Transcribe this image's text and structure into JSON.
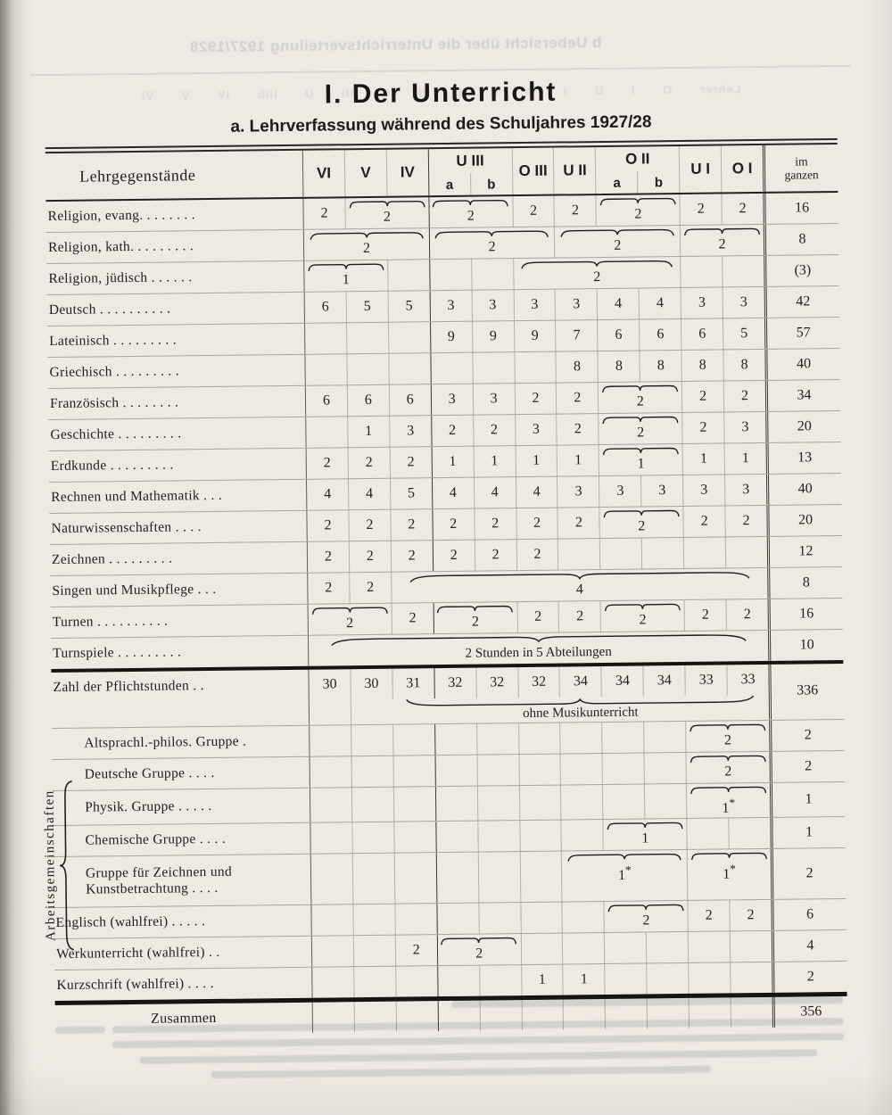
{
  "page": {
    "bleed_title": "b Uebersicht über die Unterrichtsverteilung 1927/1928",
    "bleed_columns": "Lehrer O I U I O II U II O III U IIIb IV V VI",
    "title": "I. Der Unterricht",
    "subtitle": "a. Lehrverfassung während des Schuljahres 1927/28"
  },
  "colors": {
    "paper": "#edeae4",
    "ink": "#211f1b",
    "rule_heavy": "#16150f"
  },
  "group": {
    "label": "Arbeitsgemeinschaften"
  },
  "table": {
    "corner_label": "Lehrgegenstände",
    "total_label_line1": "im",
    "total_label_line2": "ganzen",
    "class_columns": [
      {
        "label": "VI",
        "sub": false
      },
      {
        "label": "V",
        "sub": false
      },
      {
        "label": "IV",
        "sub": false
      },
      {
        "label": "U III",
        "sub": true,
        "sub_a": "a",
        "sub_b": "b"
      },
      {
        "label": "O III",
        "sub": false
      },
      {
        "label": "U II",
        "sub": false
      },
      {
        "label": "O II",
        "sub": true,
        "sub_a": "a",
        "sub_b": "b"
      },
      {
        "label": "U I",
        "sub": false
      },
      {
        "label": "O I",
        "sub": false
      }
    ],
    "rows": [
      {
        "label": "Religion, evang. . . . . . . .",
        "cells": [
          [
            1,
            1,
            "2",
            0
          ],
          [
            2,
            2,
            "2",
            1
          ],
          [
            4,
            2,
            "2",
            1
          ],
          [
            6,
            1,
            "2",
            0
          ],
          [
            7,
            1,
            "2",
            0
          ],
          [
            8,
            2,
            "2",
            1
          ],
          [
            10,
            1,
            "2",
            0
          ],
          [
            11,
            1,
            "2",
            0
          ]
        ],
        "total": "16"
      },
      {
        "label": "Religion, kath. . . . . . . . .",
        "cells": [
          [
            1,
            3,
            "2",
            1
          ],
          [
            4,
            3,
            "2",
            1
          ],
          [
            7,
            3,
            "2",
            1
          ],
          [
            10,
            2,
            "2",
            1
          ]
        ],
        "total": "8"
      },
      {
        "label": "Religion, jüdisch . . . . . .",
        "cells": [
          [
            1,
            2,
            "1",
            1
          ],
          [
            6,
            4,
            "2",
            1
          ]
        ],
        "total": "(3)"
      },
      {
        "label": "Deutsch . . . . . . . . . .",
        "cells": [
          [
            1,
            1,
            "6",
            0
          ],
          [
            2,
            1,
            "5",
            0
          ],
          [
            3,
            1,
            "5",
            0
          ],
          [
            4,
            1,
            "3",
            0
          ],
          [
            5,
            1,
            "3",
            0
          ],
          [
            6,
            1,
            "3",
            0
          ],
          [
            7,
            1,
            "3",
            0
          ],
          [
            8,
            1,
            "4",
            0
          ],
          [
            9,
            1,
            "4",
            0
          ],
          [
            10,
            1,
            "3",
            0
          ],
          [
            11,
            1,
            "3",
            0
          ]
        ],
        "total": "42"
      },
      {
        "label": "Lateinisch . . . . . . . . .",
        "cells": [
          [
            4,
            1,
            "9",
            0
          ],
          [
            5,
            1,
            "9",
            0
          ],
          [
            6,
            1,
            "9",
            0
          ],
          [
            7,
            1,
            "7",
            0
          ],
          [
            8,
            1,
            "6",
            0
          ],
          [
            9,
            1,
            "6",
            0
          ],
          [
            10,
            1,
            "6",
            0
          ],
          [
            11,
            1,
            "5",
            0
          ]
        ],
        "total": "57"
      },
      {
        "label": "Griechisch . . . . . . . . .",
        "cells": [
          [
            7,
            1,
            "8",
            0
          ],
          [
            8,
            1,
            "8",
            0
          ],
          [
            9,
            1,
            "8",
            0
          ],
          [
            10,
            1,
            "8",
            0
          ],
          [
            11,
            1,
            "8",
            0
          ]
        ],
        "total": "40"
      },
      {
        "label": "Französisch . . . . . . . .",
        "cells": [
          [
            1,
            1,
            "6",
            0
          ],
          [
            2,
            1,
            "6",
            0
          ],
          [
            3,
            1,
            "6",
            0
          ],
          [
            4,
            1,
            "3",
            0
          ],
          [
            5,
            1,
            "3",
            0
          ],
          [
            6,
            1,
            "2",
            0
          ],
          [
            7,
            1,
            "2",
            0
          ],
          [
            8,
            2,
            "2",
            1
          ],
          [
            10,
            1,
            "2",
            0
          ],
          [
            11,
            1,
            "2",
            0
          ]
        ],
        "total": "34"
      },
      {
        "label": "Geschichte . . . . . . . . .",
        "cells": [
          [
            2,
            1,
            "1",
            0
          ],
          [
            3,
            1,
            "3",
            0
          ],
          [
            4,
            1,
            "2",
            0
          ],
          [
            5,
            1,
            "2",
            0
          ],
          [
            6,
            1,
            "3",
            0
          ],
          [
            7,
            1,
            "2",
            0
          ],
          [
            8,
            2,
            "2",
            1
          ],
          [
            10,
            1,
            "2",
            0
          ],
          [
            11,
            1,
            "3",
            0
          ]
        ],
        "total": "20"
      },
      {
        "label": "Erdkunde . . . . . . . . .",
        "cells": [
          [
            1,
            1,
            "2",
            0
          ],
          [
            2,
            1,
            "2",
            0
          ],
          [
            3,
            1,
            "2",
            0
          ],
          [
            4,
            1,
            "1",
            0
          ],
          [
            5,
            1,
            "1",
            0
          ],
          [
            6,
            1,
            "1",
            0
          ],
          [
            7,
            1,
            "1",
            0
          ],
          [
            8,
            2,
            "1",
            1
          ],
          [
            10,
            1,
            "1",
            0
          ],
          [
            11,
            1,
            "1",
            0
          ]
        ],
        "total": "13"
      },
      {
        "label": "Rechnen und Mathematik . . .",
        "cells": [
          [
            1,
            1,
            "4",
            0
          ],
          [
            2,
            1,
            "4",
            0
          ],
          [
            3,
            1,
            "5",
            0
          ],
          [
            4,
            1,
            "4",
            0
          ],
          [
            5,
            1,
            "4",
            0
          ],
          [
            6,
            1,
            "4",
            0
          ],
          [
            7,
            1,
            "3",
            0
          ],
          [
            8,
            1,
            "3",
            0
          ],
          [
            9,
            1,
            "3",
            0
          ],
          [
            10,
            1,
            "3",
            0
          ],
          [
            11,
            1,
            "3",
            0
          ]
        ],
        "total": "40"
      },
      {
        "label": "Naturwissenschaften . . . .",
        "cells": [
          [
            1,
            1,
            "2",
            0
          ],
          [
            2,
            1,
            "2",
            0
          ],
          [
            3,
            1,
            "2",
            0
          ],
          [
            4,
            1,
            "2",
            0
          ],
          [
            5,
            1,
            "2",
            0
          ],
          [
            6,
            1,
            "2",
            0
          ],
          [
            7,
            1,
            "2",
            0
          ],
          [
            8,
            2,
            "2",
            1
          ],
          [
            10,
            1,
            "2",
            0
          ],
          [
            11,
            1,
            "2",
            0
          ]
        ],
        "total": "20"
      },
      {
        "label": "Zeichnen . . . . . . . . .",
        "cells": [
          [
            1,
            1,
            "2",
            0
          ],
          [
            2,
            1,
            "2",
            0
          ],
          [
            3,
            1,
            "2",
            0
          ],
          [
            4,
            1,
            "2",
            0
          ],
          [
            5,
            1,
            "2",
            0
          ],
          [
            6,
            1,
            "2",
            0
          ]
        ],
        "total": "12"
      },
      {
        "label": "Singen und Musikpflege . . .",
        "cells": [
          [
            1,
            1,
            "2",
            0
          ],
          [
            2,
            1,
            "2",
            0
          ],
          [
            3,
            9,
            "4",
            1
          ]
        ],
        "total": "8"
      },
      {
        "label": "Turnen . . . . . . . . . .",
        "cells": [
          [
            1,
            2,
            "2",
            1
          ],
          [
            3,
            1,
            "2",
            0
          ],
          [
            4,
            2,
            "2",
            1
          ],
          [
            6,
            1,
            "2",
            0
          ],
          [
            7,
            1,
            "2",
            0
          ],
          [
            8,
            2,
            "2",
            1
          ],
          [
            10,
            1,
            "2",
            0
          ],
          [
            11,
            1,
            "2",
            0
          ]
        ],
        "total": "16"
      },
      {
        "label": "Turnspiele . . . . . . . . .",
        "cells": [
          [
            1,
            11,
            "2 Stunden in 5 Abteilungen",
            1
          ]
        ],
        "total": "10"
      },
      {
        "label": "Zahl der Pflichtstunden  .  .",
        "cells": [
          [
            1,
            1,
            "30",
            0
          ],
          [
            2,
            1,
            "30",
            0
          ],
          [
            3,
            1,
            "31",
            0
          ],
          [
            4,
            1,
            "32",
            0
          ],
          [
            5,
            1,
            "32",
            0
          ],
          [
            6,
            1,
            "32",
            0
          ],
          [
            7,
            1,
            "34",
            0
          ],
          [
            8,
            1,
            "34",
            0
          ],
          [
            9,
            1,
            "34",
            0
          ],
          [
            10,
            1,
            "33",
            0
          ],
          [
            11,
            1,
            "33",
            0
          ]
        ],
        "total": "336",
        "type": "pflicht",
        "rule": "heavy",
        "note": {
          "start": 3,
          "span": 9,
          "text": "ohne Musikunterricht"
        }
      },
      {
        "label": "Altsprachl.-philos. Gruppe .",
        "cells": [
          [
            10,
            2,
            "2",
            1
          ]
        ],
        "total": "2",
        "cls": "g"
      },
      {
        "label": "Deutsche Gruppe . . . .",
        "cells": [
          [
            10,
            2,
            "2",
            1
          ]
        ],
        "total": "2",
        "cls": "g"
      },
      {
        "label": "Physik. Gruppe . . . . .",
        "cells": [
          [
            10,
            2,
            "1*",
            1
          ]
        ],
        "total": "1",
        "cls": "g"
      },
      {
        "label": "Chemische Gruppe . . . .",
        "cells": [
          [
            8,
            2,
            "1",
            1
          ]
        ],
        "total": "1",
        "cls": "g"
      },
      {
        "label": "Gruppe für Zeichnen und\nKunstbetrachtung . . . .",
        "cells": [
          [
            7,
            3,
            "1*",
            1
          ],
          [
            10,
            2,
            "1*",
            1
          ]
        ],
        "total": "2",
        "cls": "g tall"
      },
      {
        "label": "Englisch (wahlfrei) . . . . .",
        "cells": [
          [
            8,
            2,
            "2",
            1
          ],
          [
            10,
            1,
            "2",
            0
          ],
          [
            11,
            1,
            "2",
            0
          ]
        ],
        "total": "6"
      },
      {
        "label": "Werkunterricht (wahlfrei) . .",
        "cells": [
          [
            3,
            1,
            "2",
            0
          ],
          [
            4,
            2,
            "2",
            1
          ]
        ],
        "total": "4"
      },
      {
        "label": "Kurzschrift (wahlfrei) . . . .",
        "cells": [
          [
            6,
            1,
            "1",
            0
          ],
          [
            7,
            1,
            "1",
            0
          ]
        ],
        "total": "2"
      },
      {
        "label": "Zusammen",
        "cells": [],
        "total": "356",
        "cls": "zus",
        "rule": "vheavy"
      }
    ]
  }
}
